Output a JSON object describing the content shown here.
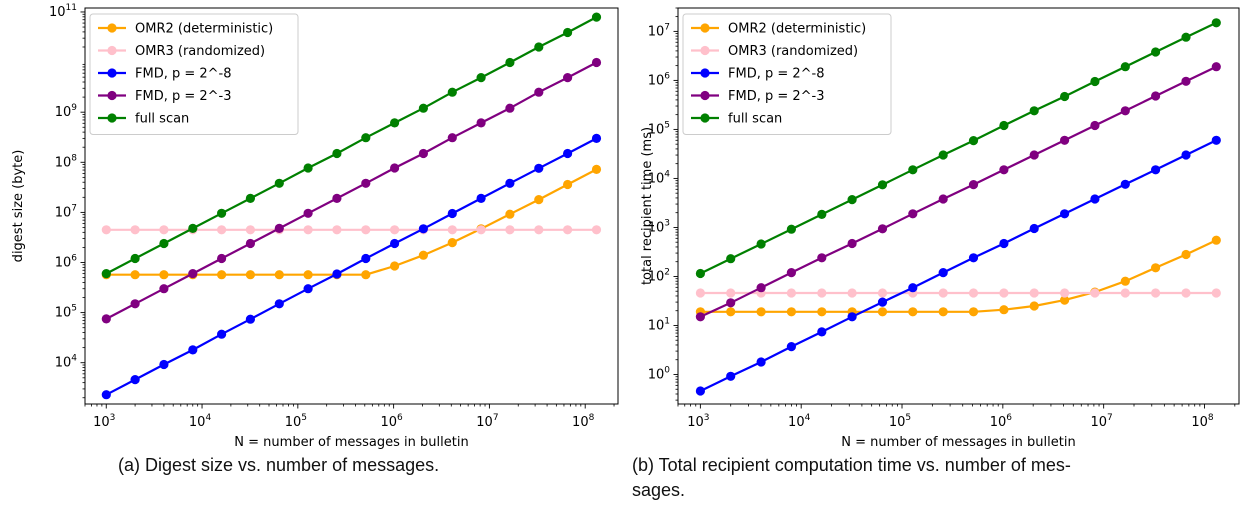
{
  "captions": {
    "a": "(a) Digest size vs. number of messages.",
    "b_line1": "(b) Total recipient computation time vs. number of mes-",
    "b_line2": "sages."
  },
  "chart_data": [
    {
      "type": "line",
      "xlabel": "N = number of messages in bulletin",
      "ylabel": "digest size (byte)",
      "xscale": "log",
      "yscale": "log",
      "xlim": [
        600,
        220000000
      ],
      "ylim": [
        1500,
        120000000000
      ],
      "xticks": [
        {
          "value": 1000,
          "base": "10",
          "exp": "3"
        },
        {
          "value": 10000,
          "base": "10",
          "exp": "4"
        },
        {
          "value": 100000,
          "base": "10",
          "exp": "5"
        },
        {
          "value": 1000000,
          "base": "10",
          "exp": "6"
        },
        {
          "value": 10000000,
          "base": "10",
          "exp": "7"
        },
        {
          "value": 100000000,
          "base": "10",
          "exp": "8"
        }
      ],
      "yticks": [
        {
          "value": 10000,
          "base": "10",
          "exp": "4"
        },
        {
          "value": 100000,
          "base": "10",
          "exp": "5"
        },
        {
          "value": 1000000,
          "base": "10",
          "exp": "6"
        },
        {
          "value": 10000000,
          "base": "10",
          "exp": "7"
        },
        {
          "value": 100000000,
          "base": "10",
          "exp": "8"
        },
        {
          "value": 1000000000,
          "base": "10",
          "exp": "9"
        },
        {
          "value": 100000000000,
          "base": "10",
          "exp": "11"
        }
      ],
      "grid": false,
      "legend_position": "top-left",
      "x": [
        1000,
        2000,
        4000,
        8000,
        16000,
        32000,
        64000,
        128000,
        256000,
        512000,
        1024000,
        2048000,
        4096000,
        8192000,
        16384000,
        32768000,
        65536000,
        131072000
      ],
      "series": [
        {
          "name": "OMR2 (deterministic)",
          "color": "#ffa500",
          "values": [
            570000,
            570000,
            570000,
            570000,
            570000,
            570000,
            570000,
            570000,
            570000,
            570000,
            850000,
            1400000,
            2500000,
            4700000,
            9200000,
            18000000,
            36000000,
            72000000
          ]
        },
        {
          "name": "OMR3 (randomized)",
          "color": "#ffc0cb",
          "values": [
            4500000,
            4500000,
            4500000,
            4500000,
            4500000,
            4500000,
            4500000,
            4500000,
            4500000,
            4500000,
            4500000,
            4500000,
            4500000,
            4500000,
            4500000,
            4500000,
            4500000,
            4500000
          ]
        },
        {
          "name": "FMD, p = 2^-8",
          "color": "#0000ff",
          "values": [
            2300,
            4600,
            9200,
            18000,
            37000,
            74000,
            150000,
            300000,
            590000,
            1200000,
            2400000,
            4700000,
            9500000,
            19000000,
            38000000,
            76000000,
            150000000,
            300000000
          ]
        },
        {
          "name": "FMD, p = 2^-3",
          "color": "#800080",
          "values": [
            75000,
            150000,
            300000,
            600000,
            1200000,
            2400000,
            4800000,
            9600000,
            19000000,
            38000000,
            77000000,
            150000000,
            310000000,
            610000000,
            1200000000,
            2500000000,
            4900000000,
            9800000000
          ]
        },
        {
          "name": "full scan",
          "color": "#008000",
          "values": [
            600000,
            1200000,
            2400000,
            4800000,
            9600000,
            19000000,
            38000000,
            77000000,
            150000000,
            310000000,
            610000000,
            1200000000,
            2500000000,
            4900000000,
            9800000000,
            20000000000,
            39000000000,
            79000000000
          ]
        }
      ]
    },
    {
      "type": "line",
      "xlabel": "N = number of messages in bulletin",
      "ylabel": "total recipient time (ms)",
      "xscale": "log",
      "yscale": "log",
      "xlim": [
        600,
        220000000
      ],
      "ylim": [
        0.25,
        30000000
      ],
      "xticks": [
        {
          "value": 1000,
          "base": "10",
          "exp": "3"
        },
        {
          "value": 10000,
          "base": "10",
          "exp": "4"
        },
        {
          "value": 100000,
          "base": "10",
          "exp": "5"
        },
        {
          "value": 1000000,
          "base": "10",
          "exp": "6"
        },
        {
          "value": 10000000,
          "base": "10",
          "exp": "7"
        },
        {
          "value": 100000000,
          "base": "10",
          "exp": "8"
        }
      ],
      "yticks": [
        {
          "value": 1,
          "base": "10",
          "exp": "0"
        },
        {
          "value": 10,
          "base": "10",
          "exp": "1"
        },
        {
          "value": 100,
          "base": "10",
          "exp": "2"
        },
        {
          "value": 1000,
          "base": "10",
          "exp": "3"
        },
        {
          "value": 10000,
          "base": "10",
          "exp": "4"
        },
        {
          "value": 100000,
          "base": "10",
          "exp": "5"
        },
        {
          "value": 1000000,
          "base": "10",
          "exp": "6"
        },
        {
          "value": 10000000,
          "base": "10",
          "exp": "7"
        }
      ],
      "grid": false,
      "legend_position": "top-left",
      "x": [
        1000,
        2000,
        4000,
        8000,
        16000,
        32000,
        64000,
        128000,
        256000,
        512000,
        1024000,
        2048000,
        4096000,
        8192000,
        16384000,
        32768000,
        65536000,
        131072000
      ],
      "series": [
        {
          "name": "OMR2 (deterministic)",
          "color": "#ffa500",
          "values": [
            19,
            19,
            19,
            19,
            19,
            19,
            19,
            19,
            19,
            19,
            21,
            25,
            33,
            48,
            80,
            150,
            280,
            550
          ]
        },
        {
          "name": "OMR3 (randomized)",
          "color": "#ffc0cb",
          "values": [
            46,
            46,
            46,
            46,
            46,
            46,
            46,
            46,
            46,
            46,
            46,
            46,
            46,
            46,
            46,
            46,
            46,
            46
          ]
        },
        {
          "name": "FMD, p = 2^-8",
          "color": "#0000ff",
          "values": [
            0.46,
            0.92,
            1.8,
            3.7,
            7.4,
            15,
            30,
            59,
            120,
            240,
            470,
            950,
            1900,
            3800,
            7600,
            15000,
            30000,
            60000
          ]
        },
        {
          "name": "FMD, p = 2^-3",
          "color": "#800080",
          "values": [
            15,
            29,
            59,
            120,
            240,
            470,
            940,
            1900,
            3800,
            7500,
            15000,
            30000,
            60000,
            120000,
            240000,
            480000,
            960000,
            1900000
          ]
        },
        {
          "name": "full scan",
          "color": "#008000",
          "values": [
            115,
            230,
            460,
            920,
            1850,
            3700,
            7400,
            15000,
            30000,
            59000,
            120000,
            240000,
            470000,
            950000,
            1900000,
            3800000,
            7600000,
            15000000
          ]
        }
      ]
    }
  ]
}
